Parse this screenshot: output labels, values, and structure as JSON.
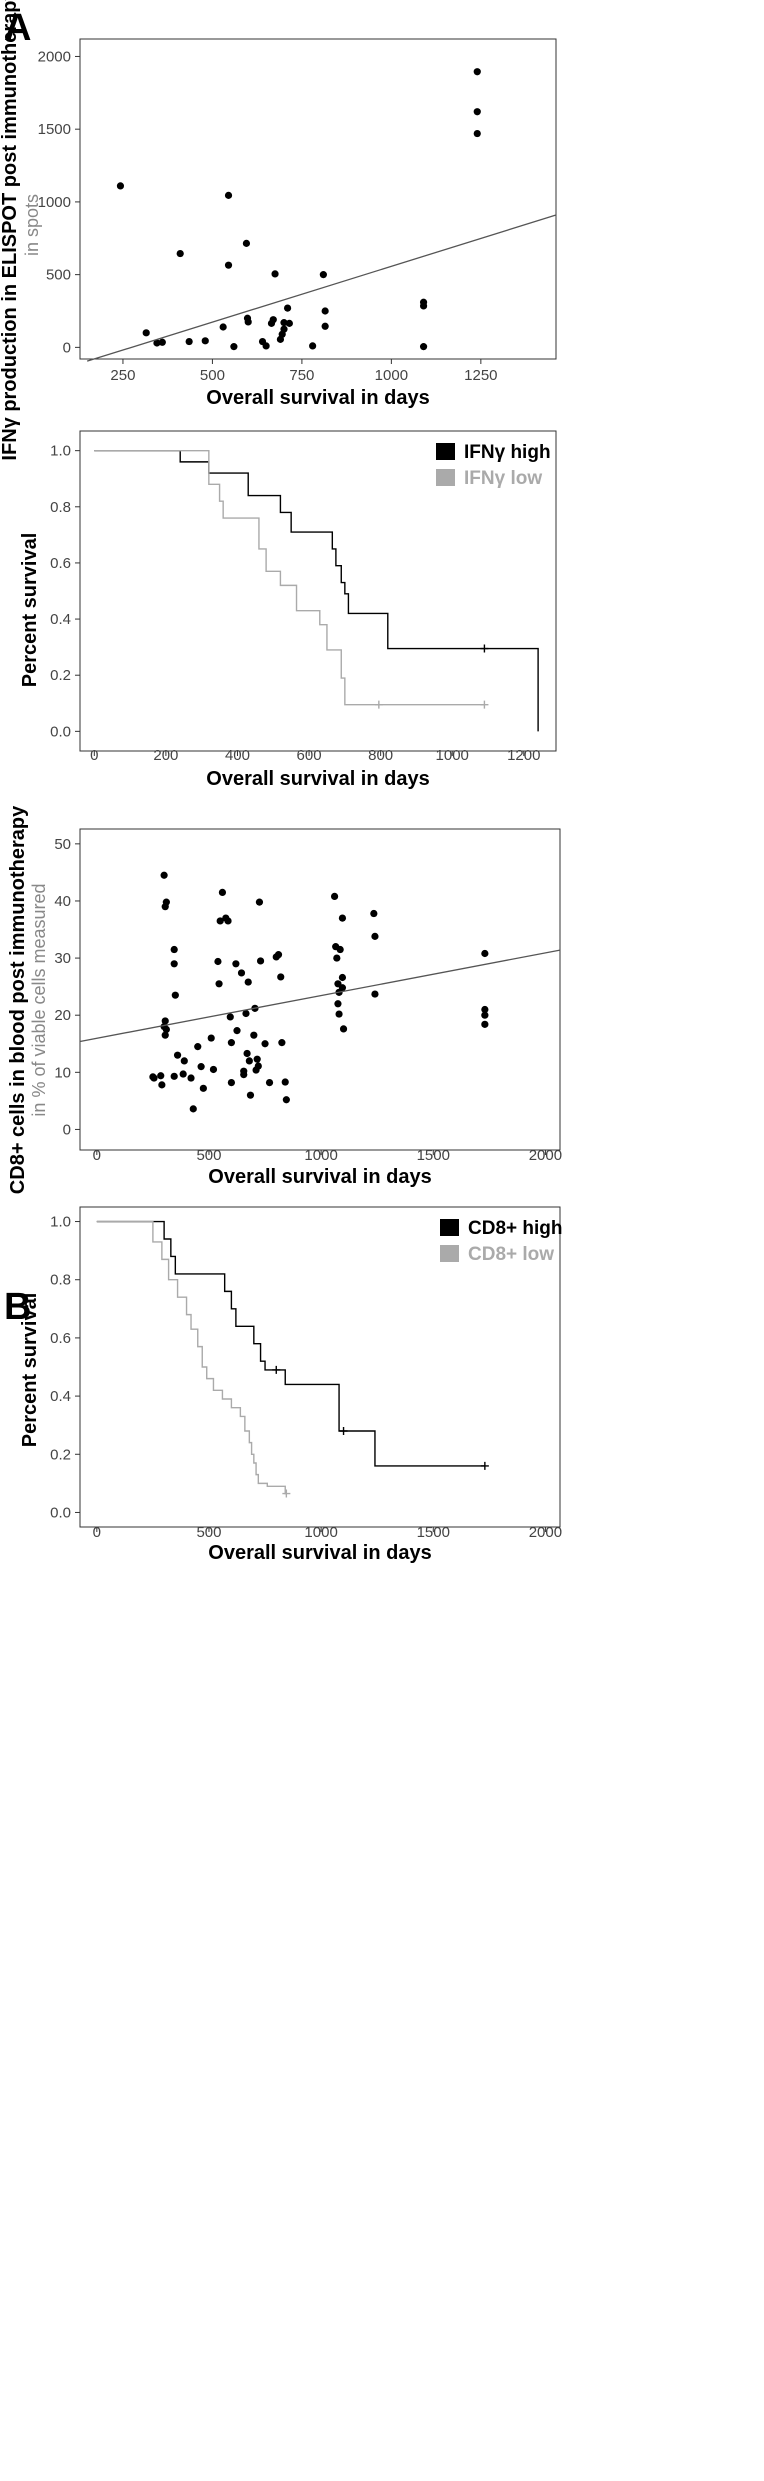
{
  "panels": {
    "a": {
      "letter": "A"
    },
    "b": {
      "letter": "B"
    }
  },
  "chart_data": [
    {
      "type": "scatter",
      "id": "a_scatter",
      "xlabel": "Overall survival in days",
      "ylabel": "IFNγ production in ELISPOT post immunotherapy",
      "ylabel_sub": "in spots",
      "xlim": [
        130,
        1460
      ],
      "ylim": [
        -80,
        2120
      ],
      "xticks": [
        250,
        500,
        750,
        1000,
        1250
      ],
      "yticks": [
        0,
        500,
        1000,
        1500,
        2000
      ],
      "grid": false,
      "points": [
        [
          243,
          1110
        ],
        [
          315,
          100
        ],
        [
          345,
          30
        ],
        [
          360,
          35
        ],
        [
          410,
          645
        ],
        [
          435,
          40
        ],
        [
          480,
          45
        ],
        [
          530,
          140
        ],
        [
          545,
          1045
        ],
        [
          545,
          565
        ],
        [
          560,
          5
        ],
        [
          595,
          715
        ],
        [
          598,
          200
        ],
        [
          600,
          175
        ],
        [
          640,
          40
        ],
        [
          650,
          10
        ],
        [
          665,
          165
        ],
        [
          670,
          190
        ],
        [
          675,
          505
        ],
        [
          690,
          55
        ],
        [
          695,
          90
        ],
        [
          700,
          125
        ],
        [
          700,
          170
        ],
        [
          710,
          270
        ],
        [
          715,
          165
        ],
        [
          780,
          10
        ],
        [
          810,
          500
        ],
        [
          815,
          250
        ],
        [
          815,
          145
        ],
        [
          1090,
          310
        ],
        [
          1090,
          285
        ],
        [
          1090,
          5
        ],
        [
          1240,
          1895
        ],
        [
          1240,
          1620
        ],
        [
          1240,
          1470
        ]
      ],
      "regression_line": {
        "x": [
          150,
          1460
        ],
        "y": [
          -95,
          910
        ]
      }
    },
    {
      "type": "line",
      "subtype": "kaplan-meier",
      "id": "a_km",
      "xlabel": "Overall survival in days",
      "ylabel": "Percent survival",
      "xlim": [
        -40,
        1290
      ],
      "ylim": [
        -0.07,
        1.07
      ],
      "xticks": [
        0,
        200,
        400,
        600,
        800,
        1000,
        1200
      ],
      "yticks": [
        0.0,
        0.2,
        0.4,
        0.6,
        0.8,
        1.0
      ],
      "legend": {
        "position": "top-right",
        "entries": [
          "IFNγ high",
          "IFNγ low"
        ]
      },
      "series": [
        {
          "name": "IFNγ high",
          "color": "#000000",
          "steps": [
            [
              0,
              1.0
            ],
            [
              240,
              0.96
            ],
            [
              300,
              0.96
            ],
            [
              320,
              0.92
            ],
            [
              430,
              0.84
            ],
            [
              520,
              0.78
            ],
            [
              550,
              0.71
            ],
            [
              620,
              0.71
            ],
            [
              640,
              0.71
            ],
            [
              665,
              0.65
            ],
            [
              675,
              0.59
            ],
            [
              690,
              0.53
            ],
            [
              700,
              0.49
            ],
            [
              710,
              0.42
            ],
            [
              820,
              0.295
            ],
            [
              1240,
              0.0
            ]
          ],
          "censored": [
            [
              1090,
              0.295
            ]
          ]
        },
        {
          "name": "IFNγ low",
          "color": "#aaaaaa",
          "steps": [
            [
              0,
              1.0
            ],
            [
              270,
              1.0
            ],
            [
              320,
              0.88
            ],
            [
              350,
              0.82
            ],
            [
              360,
              0.76
            ],
            [
              410,
              0.76
            ],
            [
              460,
              0.65
            ],
            [
              480,
              0.57
            ],
            [
              520,
              0.52
            ],
            [
              565,
              0.43
            ],
            [
              630,
              0.38
            ],
            [
              650,
              0.29
            ],
            [
              690,
              0.19
            ],
            [
              700,
              0.095
            ]
          ],
          "censored": [
            [
              795,
              0.095
            ],
            [
              1090,
              0.095
            ]
          ]
        }
      ]
    },
    {
      "type": "scatter",
      "id": "b_scatter",
      "xlabel": "Overall survival in days",
      "ylabel": "CD8+ cells in blood post immunotherapy",
      "ylabel_sub": "in % of viable cells measured",
      "xlim": [
        -75,
        2065
      ],
      "ylim": [
        -3.6,
        52.6
      ],
      "xticks": [
        0,
        500,
        1000,
        1500,
        2000
      ],
      "yticks": [
        0,
        10,
        20,
        30,
        40,
        50
      ],
      "grid": false,
      "points": [
        [
          300,
          44.5
        ],
        [
          305,
          39
        ],
        [
          310,
          39.8
        ],
        [
          345,
          31.5
        ],
        [
          345,
          29
        ],
        [
          350,
          23.5
        ],
        [
          305,
          19
        ],
        [
          300,
          18
        ],
        [
          310,
          17.5
        ],
        [
          305,
          16.5
        ],
        [
          250,
          9.2
        ],
        [
          255,
          9
        ],
        [
          285,
          9.4
        ],
        [
          290,
          7.8
        ],
        [
          345,
          9.3
        ],
        [
          360,
          13
        ],
        [
          385,
          9.7
        ],
        [
          390,
          12
        ],
        [
          420,
          9
        ],
        [
          430,
          3.6
        ],
        [
          450,
          14.5
        ],
        [
          465,
          11
        ],
        [
          475,
          7.2
        ],
        [
          510,
          16
        ],
        [
          520,
          10.5
        ],
        [
          540,
          29.4
        ],
        [
          545,
          25.5
        ],
        [
          550,
          36.5
        ],
        [
          560,
          41.5
        ],
        [
          575,
          37
        ],
        [
          585,
          36.5
        ],
        [
          595,
          19.7
        ],
        [
          600,
          15.2
        ],
        [
          600,
          8.2
        ],
        [
          620,
          29
        ],
        [
          625,
          17.3
        ],
        [
          645,
          27.4
        ],
        [
          655,
          10.2
        ],
        [
          655,
          9.6
        ],
        [
          665,
          20.3
        ],
        [
          670,
          13.3
        ],
        [
          675,
          25.8
        ],
        [
          680,
          12
        ],
        [
          685,
          6
        ],
        [
          705,
          21.2
        ],
        [
          700,
          16.5
        ],
        [
          710,
          10.4
        ],
        [
          715,
          12.3
        ],
        [
          720,
          11.1
        ],
        [
          725,
          39.8
        ],
        [
          730,
          29.5
        ],
        [
          750,
          15
        ],
        [
          770,
          8.2
        ],
        [
          800,
          30.2
        ],
        [
          820,
          26.7
        ],
        [
          810,
          30.6
        ],
        [
          840,
          8.3
        ],
        [
          845,
          5.2
        ],
        [
          825,
          15.2
        ],
        [
          1060,
          40.8
        ],
        [
          1065,
          32
        ],
        [
          1070,
          30
        ],
        [
          1075,
          25.5
        ],
        [
          1080,
          24
        ],
        [
          1075,
          22
        ],
        [
          1080,
          20.2
        ],
        [
          1085,
          31.5
        ],
        [
          1095,
          37
        ],
        [
          1095,
          26.6
        ],
        [
          1095,
          24.8
        ],
        [
          1100,
          17.6
        ],
        [
          1235,
          37.8
        ],
        [
          1240,
          33.8
        ],
        [
          1240,
          23.7
        ],
        [
          1730,
          30.8
        ],
        [
          1730,
          21
        ],
        [
          1730,
          20
        ],
        [
          1730,
          18.4
        ]
      ],
      "regression_line": {
        "x": [
          -75,
          2065
        ],
        "y": [
          15.4,
          31.4
        ]
      }
    },
    {
      "type": "line",
      "subtype": "kaplan-meier",
      "id": "b_km",
      "xlabel": "Overall survival in days",
      "ylabel": "Percent survival",
      "xlim": [
        -75,
        2065
      ],
      "ylim": [
        -0.05,
        1.05
      ],
      "xticks": [
        0,
        500,
        1000,
        1500,
        2000
      ],
      "yticks": [
        0.0,
        0.2,
        0.4,
        0.6,
        0.8,
        1.0
      ],
      "legend": {
        "position": "top-right",
        "entries": [
          "CD8+ high",
          "CD8+ low"
        ]
      },
      "series": [
        {
          "name": "CD8+ high",
          "color": "#000000",
          "steps": [
            [
              0,
              1.0
            ],
            [
              300,
              0.94
            ],
            [
              330,
              0.88
            ],
            [
              350,
              0.82
            ],
            [
              570,
              0.76
            ],
            [
              600,
              0.7
            ],
            [
              620,
              0.64
            ],
            [
              700,
              0.58
            ],
            [
              730,
              0.52
            ],
            [
              750,
              0.49
            ],
            [
              840,
              0.44
            ],
            [
              1080,
              0.28
            ],
            [
              1240,
              0.16
            ]
          ],
          "censored": [
            [
              800,
              0.49
            ],
            [
              1100,
              0.28
            ],
            [
              1730,
              0.16
            ]
          ]
        },
        {
          "name": "CD8+ low",
          "color": "#aaaaaa",
          "steps": [
            [
              0,
              1.0
            ],
            [
              250,
              0.93
            ],
            [
              290,
              0.87
            ],
            [
              320,
              0.8
            ],
            [
              360,
              0.74
            ],
            [
              400,
              0.68
            ],
            [
              420,
              0.63
            ],
            [
              450,
              0.57
            ],
            [
              470,
              0.5
            ],
            [
              490,
              0.46
            ],
            [
              520,
              0.42
            ],
            [
              560,
              0.39
            ],
            [
              600,
              0.36
            ],
            [
              640,
              0.33
            ],
            [
              660,
              0.28
            ],
            [
              680,
              0.24
            ],
            [
              690,
              0.2
            ],
            [
              700,
              0.17
            ],
            [
              710,
              0.13
            ],
            [
              720,
              0.1
            ],
            [
              760,
              0.09
            ],
            [
              840,
              0.065
            ]
          ],
          "censored": [
            [
              845,
              0.065
            ]
          ]
        }
      ]
    }
  ]
}
